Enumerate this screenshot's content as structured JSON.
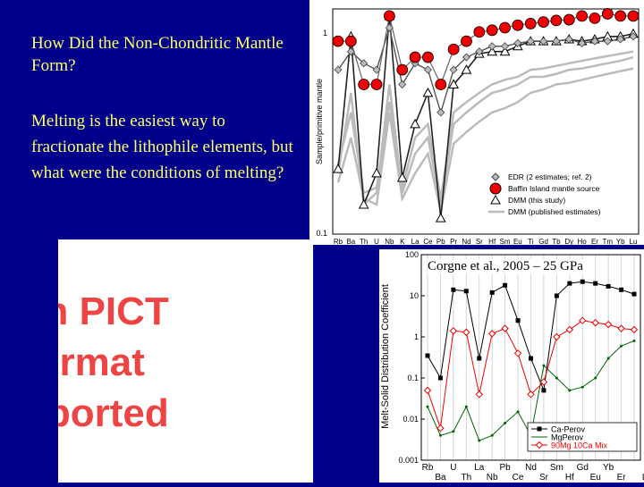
{
  "slide": {
    "title": "How Did the Non-Chondritic Mantle Form?",
    "body": "Melting is the easiest way to fractionate the lithophile elements, but what were the conditions of melting?",
    "placeholder_text": "sh PICT\nformat\npported",
    "citation": "Corgne et al., 2005 – 25 GPa"
  },
  "colors": {
    "background": "#00008b",
    "text": "#ffff66",
    "pict_text": "#ee4444",
    "baffin": "#ee0000",
    "ca_perov": "#000000",
    "mg_perov": "#006600",
    "mix": "#ee0000"
  },
  "chart_data": [
    {
      "type": "line",
      "ylabel": "Sample/primitive mantle",
      "yscale": "log",
      "ylim": [
        0.1,
        1.3
      ],
      "yticks": [
        "1",
        "0.1"
      ],
      "categories": [
        "Rb",
        "Ba",
        "Th",
        "U",
        "Nb",
        "K",
        "La",
        "Ce",
        "Pb",
        "Pr",
        "Nd",
        "Sr",
        "Hf",
        "Sm",
        "Eu",
        "Ti",
        "Gd",
        "Tb",
        "Dy",
        "Ho",
        "Er",
        "Tm",
        "Yb",
        "Lu"
      ],
      "legend": [
        "EDR (2 estimates; ref. 2)",
        "Baffin Island mantle source",
        "DMM (this study)",
        "DMM (published estimates)"
      ],
      "legend_position": "bottom-right",
      "series": [
        {
          "name": "Baffin Island mantle source",
          "values": [
            0.9,
            0.9,
            0.55,
            0.55,
            1.2,
            0.65,
            0.75,
            0.75,
            0.55,
            0.82,
            0.9,
            1.0,
            1.02,
            1.05,
            1.08,
            1.1,
            1.12,
            1.14,
            1.15,
            1.2,
            1.17,
            1.23,
            1.2,
            1.2
          ]
        },
        {
          "name": "EDR (2 estimates; ref. 2)",
          "values": [
            0.65,
            0.8,
            0.7,
            0.65,
            1.05,
            0.55,
            0.7,
            0.65,
            0.4,
            0.65,
            0.75,
            0.8,
            0.85,
            0.85,
            0.88,
            0.9,
            0.9,
            0.9,
            0.92,
            0.88,
            0.9,
            0.9,
            0.92,
            0.95
          ]
        },
        {
          "name": "DMM (this study)",
          "values": [
            0.21,
            0.95,
            0.14,
            0.2,
            1.2,
            0.19,
            0.35,
            0.5,
            0.12,
            0.55,
            0.65,
            0.78,
            0.8,
            0.8,
            0.85,
            0.9,
            0.9,
            0.9,
            0.92,
            0.9,
            0.92,
            0.95,
            0.95,
            0.98
          ]
        }
      ],
      "gray_series": [
        [
          0.2,
          0.5,
          0.14,
          0.16,
          0.55,
          0.16,
          0.25,
          0.3,
          0.14,
          0.35,
          0.4,
          0.45,
          0.5,
          0.52,
          0.55,
          0.6,
          0.6,
          0.62,
          0.65,
          0.66,
          0.68,
          0.7,
          0.72,
          0.75
        ],
        [
          0.18,
          0.3,
          0.15,
          0.14,
          0.4,
          0.15,
          0.2,
          0.25,
          0.13,
          0.28,
          0.32,
          0.36,
          0.4,
          0.42,
          0.45,
          0.5,
          0.52,
          0.55,
          0.56,
          0.58,
          0.6,
          0.62,
          0.64,
          0.66
        ],
        [
          0.22,
          0.4,
          0.16,
          0.17,
          0.45,
          0.17,
          0.3,
          0.35,
          0.15,
          0.4,
          0.45,
          0.5,
          0.55,
          0.58,
          0.6,
          0.65,
          0.66,
          0.68,
          0.7,
          0.72,
          0.74,
          0.76,
          0.78,
          0.8
        ]
      ]
    },
    {
      "type": "line",
      "ylabel": "Melt-Solid Distribution Coefficient",
      "yscale": "log",
      "ylim": [
        0.001,
        100
      ],
      "yticks": [
        "100",
        "10",
        "1",
        "0.1",
        "0.01",
        "0.001"
      ],
      "categories": [
        "Rb",
        "Ba",
        "Th",
        "U",
        "Nb",
        "Ce",
        "La",
        "Sr",
        "Pb",
        "Hf",
        "Nd",
        "Eu",
        "Sm",
        "Er",
        "Gd",
        "Lu",
        "Yb"
      ],
      "xtick_labels_top": [
        "Rb",
        "U",
        "La",
        "Pb",
        "Nd",
        "Sm",
        "Gd",
        "Yb"
      ],
      "xtick_labels_bottom": [
        "Ba",
        "Th",
        "Nb",
        "Ce",
        "Sr",
        "Hf",
        "Eu",
        "Er",
        "Lu"
      ],
      "legend": [
        "Ca-Perov",
        "MgPerov",
        "90Mg 10Ca Mix"
      ],
      "legend_position": "bottom-right",
      "series": [
        {
          "name": "Ca-Perov",
          "values": [
            0.35,
            0.1,
            14,
            13,
            0.3,
            12,
            18,
            2.5,
            0.3,
            0.05,
            10,
            20,
            22,
            20,
            17,
            14,
            11
          ]
        },
        {
          "name": "MgPerov",
          "values": [
            0.02,
            0.004,
            0.005,
            0.02,
            0.003,
            0.004,
            0.008,
            0.015,
            0.004,
            0.2,
            0.1,
            0.05,
            0.06,
            0.1,
            0.3,
            0.6,
            0.8
          ]
        },
        {
          "name": "90Mg 10Ca Mix",
          "values": [
            0.05,
            0.006,
            1.4,
            1.3,
            0.04,
            1.2,
            1.6,
            0.4,
            0.04,
            0.08,
            1,
            1.5,
            2.5,
            2.2,
            2,
            1.6,
            1.5
          ]
        }
      ]
    }
  ]
}
